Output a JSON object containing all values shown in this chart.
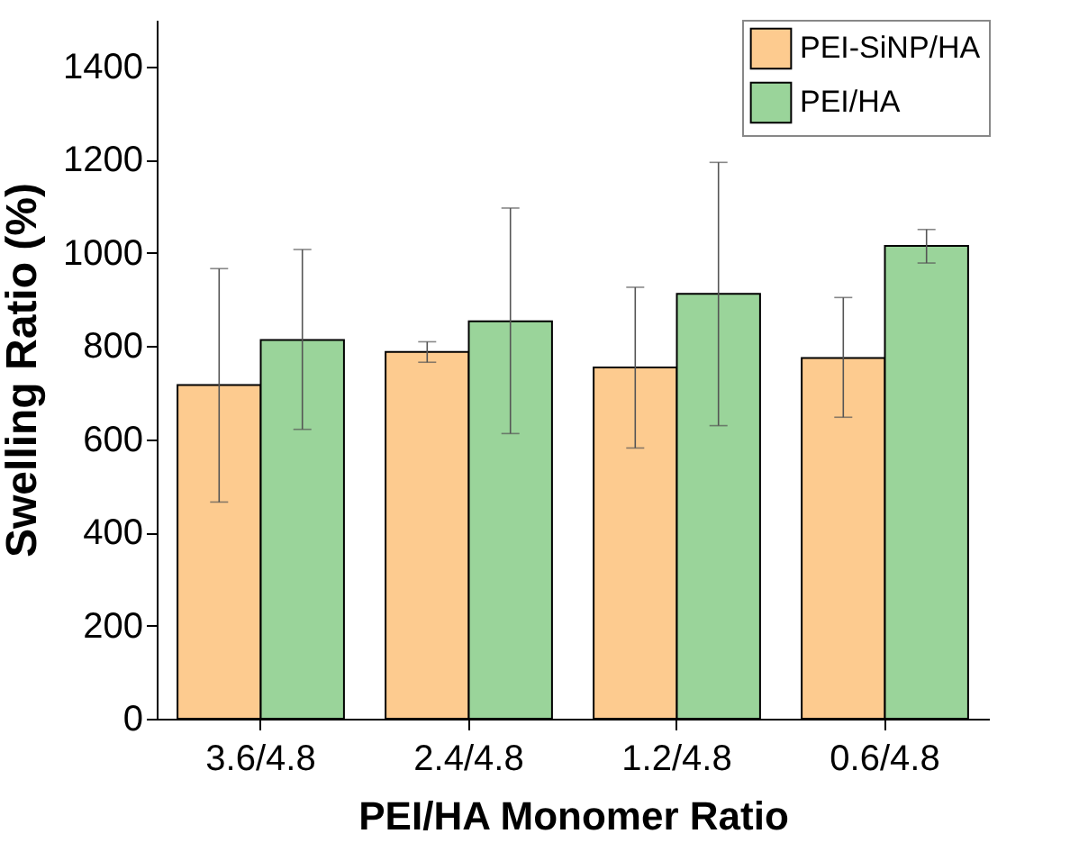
{
  "chart_data": {
    "type": "bar",
    "xlabel": "PEI/HA Monomer Ratio",
    "ylabel": "Swelling Ratio (%)",
    "categories": [
      "3.6/4.8",
      "2.4/4.8",
      "1.2/4.8",
      "0.6/4.8"
    ],
    "series": [
      {
        "name": "PEI-SiNP/HA",
        "color": "#fdcb8f",
        "values": [
          716,
          787,
          754,
          774
        ],
        "errors": [
          [
            465,
            966
          ],
          [
            765,
            809
          ],
          [
            581,
            926
          ],
          [
            647,
            904
          ]
        ]
      },
      {
        "name": "PEI/HA",
        "color": "#9ad49a",
        "values": [
          813,
          853,
          912,
          1015
        ],
        "errors": [
          [
            621,
            1007
          ],
          [
            612,
            1096
          ],
          [
            629,
            1194
          ],
          [
            978,
            1050
          ]
        ]
      }
    ],
    "ylim": [
      0,
      1500
    ],
    "yticks": [
      0,
      200,
      400,
      600,
      800,
      1000,
      1200,
      1400
    ],
    "grid": false,
    "legend": "top right"
  }
}
